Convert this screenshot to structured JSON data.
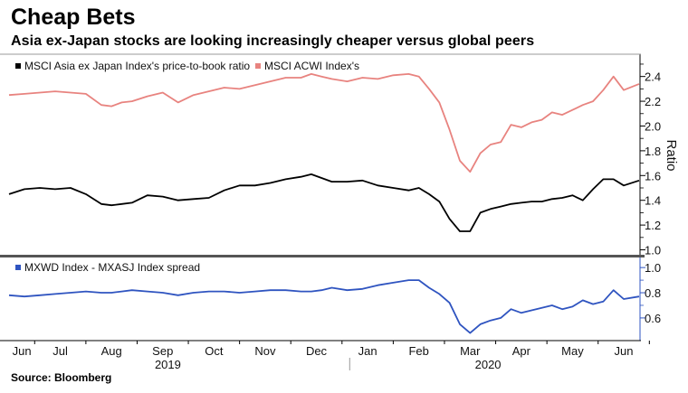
{
  "title": "Cheap Bets",
  "subtitle": "Asia ex-Japan stocks are looking increasingly cheaper versus global peers",
  "source": "Source: Bloomberg",
  "colors": {
    "black_series": "#000000",
    "red_series": "#e8837f",
    "blue_series": "#2f54c0",
    "divider": "#555555",
    "grid": "#bbbbbb"
  },
  "chart_data": [
    {
      "type": "line",
      "title": "",
      "ylabel": "Ratio",
      "ylim": [
        0.96,
        2.58
      ],
      "yticks": [
        1.0,
        1.2,
        1.4,
        1.6,
        1.8,
        2.0,
        2.2,
        2.4
      ],
      "ytick_labels": [
        "1.0",
        "1.2",
        "1.4",
        "1.6",
        "1.8",
        "2.0",
        "2.2",
        "2.4"
      ],
      "legend": [
        "MSCI Asia ex Japan Index's price-to-book ratio",
        "MSCI ACWI Index's"
      ],
      "legend_position": "top-left",
      "series": [
        {
          "name": "MSCI ACWI Index's",
          "x": [
            0,
            0.3,
            0.6,
            0.9,
            1.2,
            1.5,
            1.8,
            2.0,
            2.2,
            2.4,
            2.7,
            3.0,
            3.3,
            3.6,
            3.9,
            4.2,
            4.5,
            4.8,
            5.1,
            5.4,
            5.7,
            5.9,
            6.1,
            6.3,
            6.6,
            6.9,
            7.2,
            7.5,
            7.8,
            8.0,
            8.2,
            8.4,
            8.6,
            8.8,
            9.0,
            9.2,
            9.4,
            9.6,
            9.8,
            10.0,
            10.2,
            10.4,
            10.6,
            10.8,
            11.0,
            11.2,
            11.4,
            11.6,
            11.8,
            12.0,
            12.3
          ],
          "values": [
            2.25,
            2.26,
            2.27,
            2.28,
            2.27,
            2.26,
            2.17,
            2.16,
            2.19,
            2.2,
            2.24,
            2.27,
            2.19,
            2.25,
            2.28,
            2.31,
            2.3,
            2.33,
            2.36,
            2.39,
            2.39,
            2.42,
            2.4,
            2.38,
            2.36,
            2.39,
            2.38,
            2.41,
            2.42,
            2.4,
            2.3,
            2.19,
            1.97,
            1.72,
            1.63,
            1.78,
            1.85,
            1.87,
            2.01,
            1.99,
            2.03,
            2.05,
            2.11,
            2.09,
            2.13,
            2.17,
            2.2,
            2.29,
            2.4,
            2.29,
            2.34
          ]
        },
        {
          "name": "MSCI Asia ex Japan Index's price-to-book ratio",
          "x": [
            0,
            0.3,
            0.6,
            0.9,
            1.2,
            1.5,
            1.8,
            2.0,
            2.2,
            2.4,
            2.7,
            3.0,
            3.3,
            3.6,
            3.9,
            4.2,
            4.5,
            4.8,
            5.1,
            5.4,
            5.7,
            5.9,
            6.1,
            6.3,
            6.6,
            6.9,
            7.2,
            7.5,
            7.8,
            8.0,
            8.2,
            8.4,
            8.6,
            8.8,
            9.0,
            9.2,
            9.4,
            9.6,
            9.8,
            10.0,
            10.2,
            10.4,
            10.6,
            10.8,
            11.0,
            11.2,
            11.4,
            11.6,
            11.8,
            12.0,
            12.3
          ],
          "values": [
            1.45,
            1.49,
            1.5,
            1.49,
            1.5,
            1.45,
            1.37,
            1.36,
            1.37,
            1.38,
            1.44,
            1.43,
            1.4,
            1.41,
            1.42,
            1.48,
            1.52,
            1.52,
            1.54,
            1.57,
            1.59,
            1.61,
            1.58,
            1.55,
            1.55,
            1.56,
            1.52,
            1.5,
            1.48,
            1.5,
            1.45,
            1.39,
            1.25,
            1.15,
            1.15,
            1.3,
            1.33,
            1.35,
            1.37,
            1.38,
            1.39,
            1.39,
            1.41,
            1.42,
            1.44,
            1.4,
            1.49,
            1.57,
            1.57,
            1.52,
            1.56
          ]
        }
      ]
    },
    {
      "type": "line",
      "title": "",
      "ylim": [
        0.42,
        1.08
      ],
      "yticks": [
        0.6,
        0.8,
        1.0
      ],
      "ytick_labels": [
        "0.6",
        "0.8",
        "1.0"
      ],
      "legend": [
        "MXWD Index - MXASJ Index spread"
      ],
      "legend_position": "top-left",
      "xlabel": "",
      "x_tick_labels": [
        "Jun",
        "Jul",
        "Aug",
        "Sep",
        "Oct",
        "Nov",
        "Dec",
        "Jan",
        "Feb",
        "Mar",
        "Apr",
        "May",
        "Jun"
      ],
      "x_tick_positions": [
        0.25,
        1.0,
        2.0,
        3.0,
        4.0,
        5.0,
        6.0,
        7.0,
        8.0,
        9.0,
        10.0,
        11.0,
        12.0
      ],
      "year_labels": [
        "2019",
        "2020"
      ],
      "year_label_positions": [
        3.1,
        9.35
      ],
      "series": [
        {
          "name": "MXWD Index - MXASJ Index spread",
          "x": [
            0,
            0.3,
            0.6,
            0.9,
            1.2,
            1.5,
            1.8,
            2.0,
            2.2,
            2.4,
            2.7,
            3.0,
            3.3,
            3.6,
            3.9,
            4.2,
            4.5,
            4.8,
            5.1,
            5.4,
            5.7,
            5.9,
            6.1,
            6.3,
            6.6,
            6.9,
            7.2,
            7.5,
            7.8,
            8.0,
            8.2,
            8.4,
            8.6,
            8.8,
            9.0,
            9.2,
            9.4,
            9.6,
            9.8,
            10.0,
            10.2,
            10.4,
            10.6,
            10.8,
            11.0,
            11.2,
            11.4,
            11.6,
            11.8,
            12.0,
            12.3
          ],
          "values": [
            0.78,
            0.77,
            0.78,
            0.79,
            0.8,
            0.81,
            0.8,
            0.8,
            0.81,
            0.82,
            0.81,
            0.8,
            0.78,
            0.8,
            0.81,
            0.81,
            0.8,
            0.81,
            0.82,
            0.82,
            0.81,
            0.81,
            0.82,
            0.84,
            0.82,
            0.83,
            0.86,
            0.88,
            0.9,
            0.9,
            0.84,
            0.79,
            0.72,
            0.55,
            0.48,
            0.55,
            0.58,
            0.6,
            0.67,
            0.64,
            0.66,
            0.68,
            0.7,
            0.67,
            0.69,
            0.74,
            0.71,
            0.73,
            0.82,
            0.75,
            0.77
          ]
        }
      ]
    }
  ]
}
